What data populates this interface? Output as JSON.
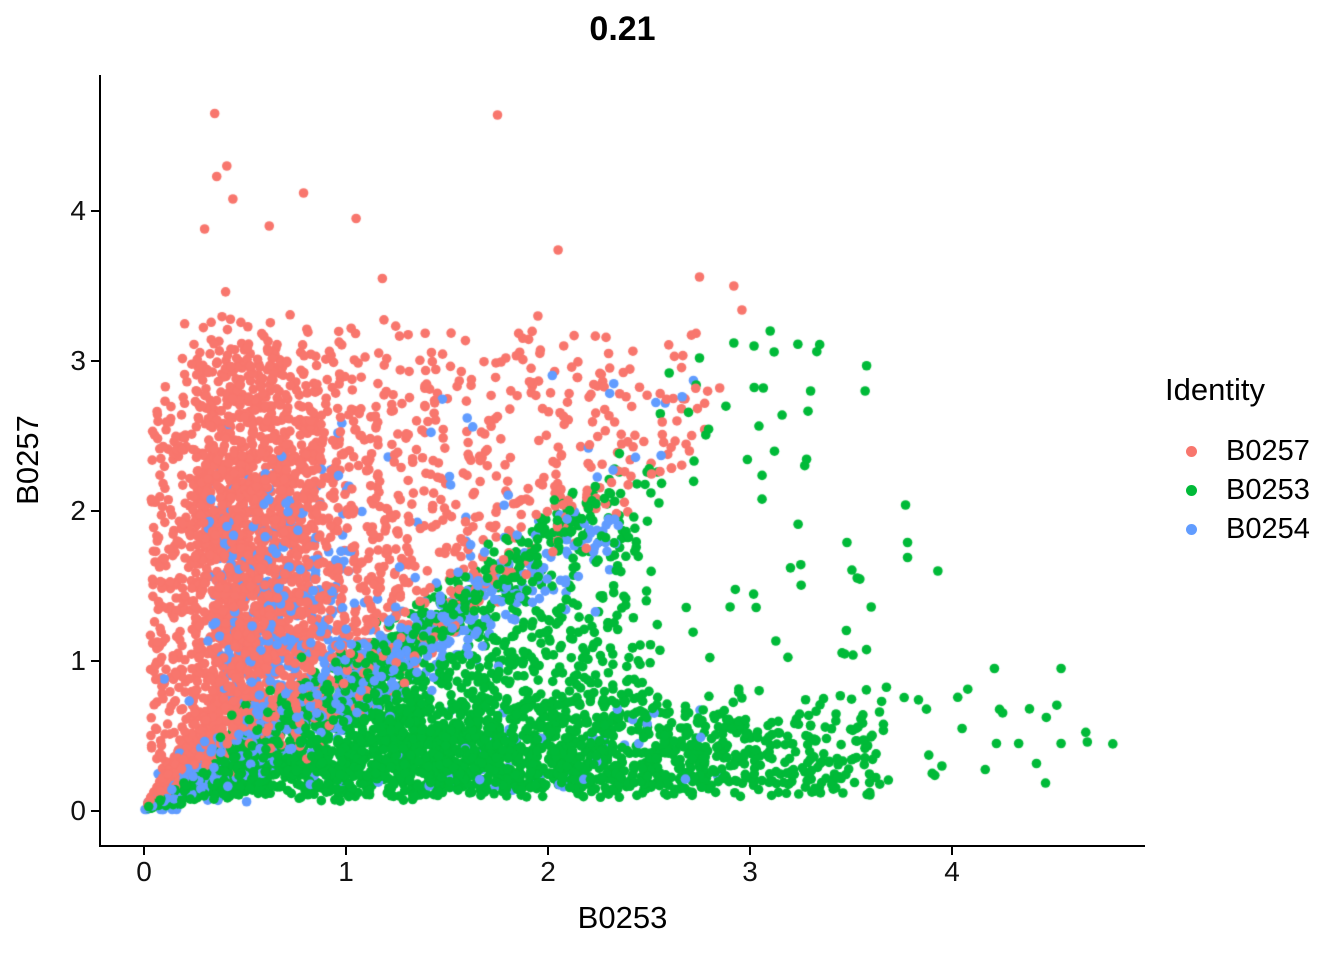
{
  "title": "0.21",
  "axes": {
    "x": {
      "label": "B0253",
      "ticks": [
        "0",
        "1",
        "2",
        "3",
        "4"
      ]
    },
    "y": {
      "label": "B0257",
      "ticks": [
        "0",
        "1",
        "2",
        "3",
        "4"
      ]
    }
  },
  "legend": {
    "title": "Identity",
    "items": [
      {
        "label": "B0257",
        "color": "#F8766D"
      },
      {
        "label": "B0253",
        "color": "#00BA38"
      },
      {
        "label": "B0254",
        "color": "#619CFF"
      }
    ]
  },
  "chart_data": {
    "type": "scatter",
    "title": "0.21",
    "correlation": 0.21,
    "xlabel": "B0253",
    "ylabel": "B0257",
    "xlim": [
      -0.22,
      4.95
    ],
    "ylim": [
      -0.24,
      4.91
    ],
    "x_ticks": [
      0,
      1,
      2,
      3,
      4
    ],
    "y_ticks": [
      0,
      1,
      2,
      3,
      4
    ],
    "grid": false,
    "legend_position": "right",
    "point_radius_px": 4.8,
    "seed": 1337,
    "series": [
      {
        "name": "B0257",
        "color": "#F8766D",
        "components": [
          {
            "kind": "strip",
            "n": 170,
            "x_min": 0.03,
            "x_span": 0.18,
            "y_base": 0.15,
            "y_span": 2.85,
            "y_a": 1.4,
            "y_b": 1.7
          },
          {
            "kind": "core",
            "n": 2250,
            "x_med": 0.58,
            "x_sigma": 0.48,
            "x_min": 0.04,
            "x_max": 2.85,
            "y_base": 0.22,
            "y_span": 3.1,
            "y_a": 1.75,
            "y_b": 1.95,
            "tail_p": 0.035,
            "tail_add": 0.5
          },
          {
            "kind": "spray",
            "n": 280,
            "x_base": 1.15,
            "x_span": 1.65,
            "x_a": 1.2,
            "x_b": 1.4,
            "y_base": 1.35,
            "y_span": 1.85
          },
          {
            "kind": "funnel",
            "n": 300,
            "x_scale": 0.5,
            "x_pow": 2.2,
            "r_base": 0.85,
            "r_span": 1.5
          },
          {
            "kind": "points",
            "pts": [
              [
                0.35,
                4.65
              ],
              [
                1.75,
                4.64
              ],
              [
                0.41,
                4.3
              ],
              [
                0.36,
                4.23
              ],
              [
                0.44,
                4.08
              ],
              [
                0.79,
                4.12
              ],
              [
                1.05,
                3.95
              ],
              [
                0.3,
                3.88
              ],
              [
                0.62,
                3.9
              ],
              [
                2.05,
                3.74
              ],
              [
                1.18,
                3.55
              ],
              [
                2.75,
                3.56
              ],
              [
                2.92,
                3.5
              ],
              [
                2.96,
                3.34
              ],
              [
                1.95,
                3.3
              ],
              [
                2.3,
                3.05
              ],
              [
                2.62,
                2.75
              ],
              [
                2.85,
                2.82
              ],
              [
                2.7,
                2.4
              ]
            ]
          }
        ]
      },
      {
        "name": "B0253",
        "color": "#00BA38",
        "components": [
          {
            "kind": "band",
            "n": 1500,
            "x_base": 0.3,
            "x_span": 3.45,
            "x_a": 1.5,
            "x_b": 1.8,
            "y_base": 0.09,
            "y_span": 0.8,
            "y_a": 1.6,
            "y_b": 2.6
          },
          {
            "kind": "wedge",
            "n": 1050,
            "x_base": 0.35,
            "x_span": 2.25,
            "x_a": 1.55,
            "x_b": 1.5,
            "f_a": 1.35,
            "f_b": 1.5,
            "slope": 0.98,
            "off": 0.05,
            "y_cap": 2.26
          },
          {
            "kind": "ridge",
            "n": 220,
            "t_base": 0.5,
            "t_span": 1.85,
            "t_a": 1.3,
            "t_b": 1.2,
            "slope": 0.92,
            "off": -0.04,
            "x_noise": 0.06,
            "y_noise": 0.09,
            "y_min": 0.05
          },
          {
            "kind": "upper",
            "n": 60,
            "x_base": 2.05,
            "x_span": 1.55,
            "y_min": 0.95,
            "y_max": 3.15,
            "cap_slope": 1.05
          },
          {
            "kind": "rtail",
            "n": 28,
            "x_base": 3.5,
            "x_span": 1.3,
            "x_pow": 1.6,
            "y_base": 0.18,
            "y_span": 0.72
          },
          {
            "kind": "funnel",
            "n": 260,
            "x_scale": 0.6,
            "x_pow": 2.0,
            "r_base": 0.18,
            "r_span": 0.8
          },
          {
            "kind": "points",
            "pts": [
              [
                3.02,
                3.1
              ],
              [
                3.1,
                3.2
              ],
              [
                2.92,
                3.12
              ],
              [
                2.75,
                3.02
              ],
              [
                2.6,
                2.92
              ],
              [
                3.57,
                2.8
              ],
              [
                3.3,
                2.8
              ],
              [
                3.48,
                1.79
              ],
              [
                3.78,
                1.79
              ],
              [
                3.78,
                1.69
              ],
              [
                3.6,
                1.36
              ],
              [
                4.54,
                0.95
              ],
              [
                3.77,
                2.04
              ],
              [
                3.93,
                1.6
              ],
              [
                4.67,
                0.46
              ],
              [
                4.54,
                0.45
              ],
              [
                4.22,
                0.45
              ],
              [
                4.33,
                0.45
              ],
              [
                4.21,
                0.95
              ],
              [
                4.05,
                0.55
              ],
              [
                3.95,
                0.3
              ]
            ]
          }
        ]
      },
      {
        "name": "B0254",
        "color": "#619CFF",
        "components": [
          {
            "kind": "band",
            "n": 300,
            "x_base": 0.3,
            "x_span": 0.85,
            "x_a": 1.5,
            "x_b": 1.7,
            "y_base": 0.5,
            "y_span": 1.9,
            "y_a": 1.5,
            "y_b": 1.8
          },
          {
            "kind": "ridge",
            "n": 520,
            "t_base": 0.0,
            "t_span": 2.38,
            "t_a": 1.6,
            "t_b": 1.75,
            "slope": 0.85,
            "off": -0.03,
            "x_noise": 0.1,
            "y_noise": 0.14,
            "y_min": 0.01
          },
          {
            "kind": "sprinkle",
            "n": 26,
            "x_base": 0.28,
            "x_span": 2.4,
            "slope": 0.85,
            "off": 0.25,
            "y_max": 2.92,
            "pow": 0.75
          },
          {
            "kind": "band",
            "n": 55,
            "x_base": 0.8,
            "x_span": 2.05,
            "x_a": 1.25,
            "x_b": 1.45,
            "y_base": 0.13,
            "y_span": 0.55,
            "y_a": 1.0,
            "y_b": 1.0
          },
          {
            "kind": "funnel",
            "n": 150,
            "x_scale": 0.5,
            "x_pow": 2.1,
            "r_base": 0.45,
            "r_span": 0.75
          },
          {
            "kind": "points",
            "pts": [
              [
                2.72,
                2.87
              ],
              [
                2.58,
                2.72
              ],
              [
                2.56,
                2.37
              ],
              [
                0.41,
                2.54
              ],
              [
                0.96,
                2.52
              ],
              [
                0.1,
                0.88
              ],
              [
                2.2,
                2.42
              ],
              [
                1.6,
                2.62
              ]
            ]
          }
        ]
      }
    ]
  }
}
